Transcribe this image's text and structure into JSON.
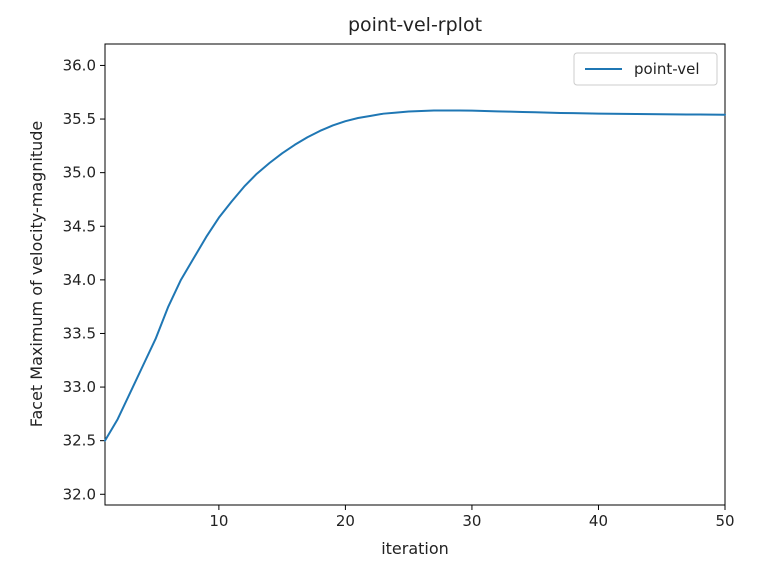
{
  "chart_data": {
    "type": "line",
    "title": "point-vel-rplot",
    "xlabel": "iteration",
    "ylabel": "Facet Maximum of velocity-magnitude",
    "xlim": [
      1,
      50
    ],
    "ylim": [
      31.9,
      36.2
    ],
    "xticks": [
      10,
      20,
      30,
      40,
      50
    ],
    "yticks": [
      32.0,
      32.5,
      33.0,
      33.5,
      34.0,
      34.5,
      35.0,
      35.5,
      36.0
    ],
    "legend_position": "top-right",
    "grid": false,
    "series": [
      {
        "name": "point-vel",
        "color": "#1f77b4",
        "x": [
          1,
          2,
          3,
          4,
          5,
          6,
          7,
          8,
          9,
          10,
          11,
          12,
          13,
          14,
          15,
          16,
          17,
          18,
          19,
          20,
          21,
          22,
          23,
          24,
          25,
          26,
          27,
          28,
          29,
          30,
          31,
          32,
          33,
          34,
          35,
          36,
          37,
          38,
          39,
          40,
          41,
          42,
          43,
          44,
          45,
          46,
          47,
          48,
          49,
          50
        ],
        "y": [
          32.5,
          32.7,
          32.95,
          33.2,
          33.45,
          33.75,
          34.0,
          34.2,
          34.4,
          34.58,
          34.73,
          34.87,
          34.99,
          35.09,
          35.18,
          35.26,
          35.33,
          35.39,
          35.44,
          35.48,
          35.51,
          35.53,
          35.55,
          35.56,
          35.57,
          35.575,
          35.58,
          35.58,
          35.58,
          35.578,
          35.575,
          35.572,
          35.569,
          35.566,
          35.563,
          35.56,
          35.557,
          35.555,
          35.553,
          35.551,
          35.549,
          35.548,
          35.547,
          35.546,
          35.545,
          35.544,
          35.543,
          35.542,
          35.541,
          35.54
        ]
      }
    ]
  }
}
